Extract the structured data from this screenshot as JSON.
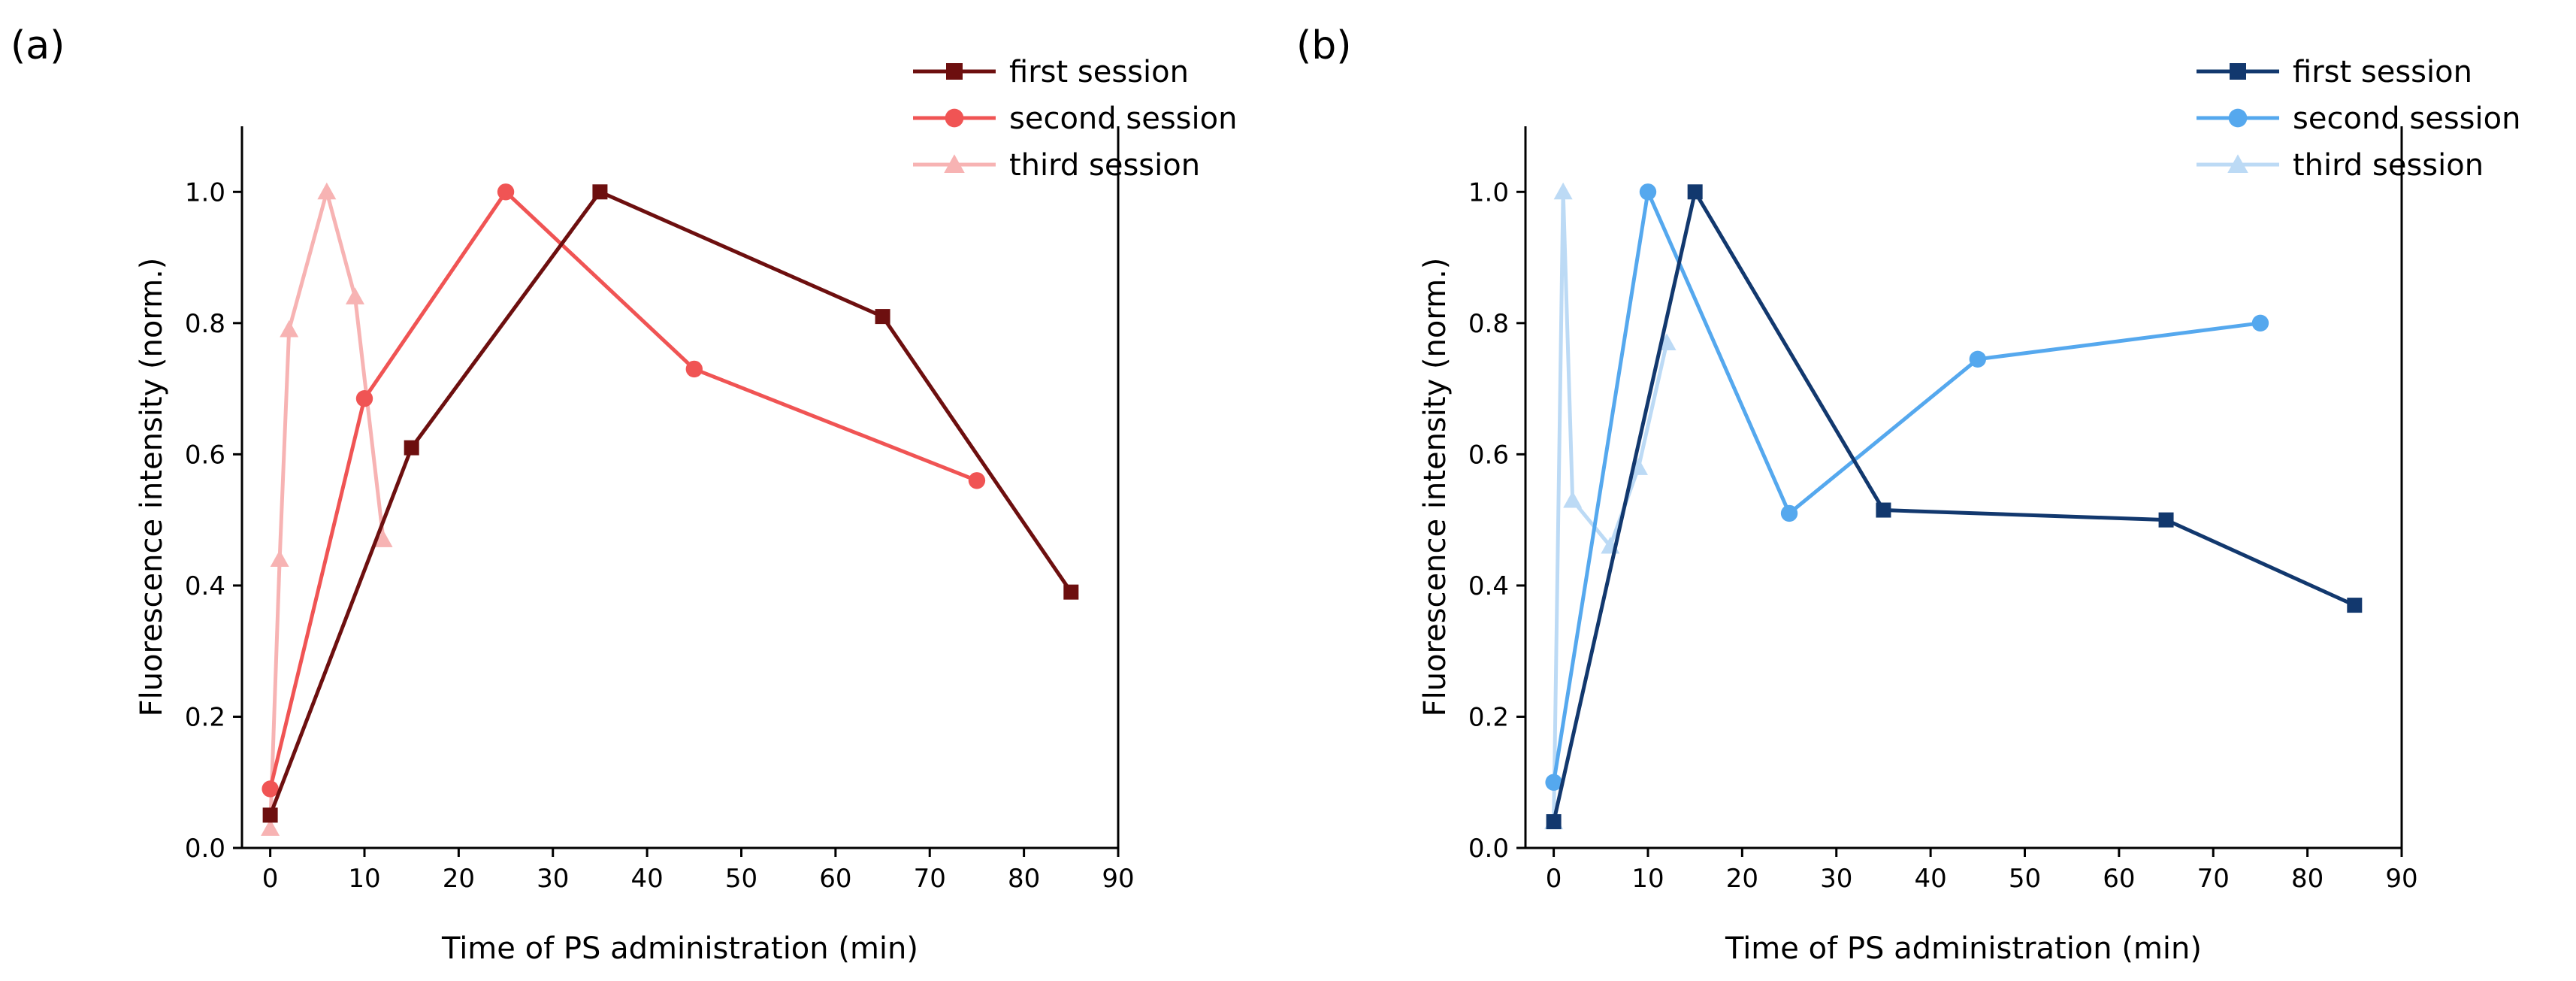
{
  "chart_data": [
    {
      "type": "line",
      "panel_label": "(a)",
      "xlabel": "Time of PS administration (min)",
      "ylabel": "Fluorescence intensity (norm.)",
      "xlim": [
        -3,
        90
      ],
      "ylim": [
        0,
        1.1
      ],
      "xticks": [
        0,
        10,
        20,
        30,
        40,
        50,
        60,
        70,
        80,
        90
      ],
      "yticks": [
        0.0,
        0.2,
        0.4,
        0.6,
        0.8,
        1.0
      ],
      "ytick_labels": [
        "0.0",
        "0.2",
        "0.4",
        "0.6",
        "0.8",
        "1.0"
      ],
      "legend_position": "top-right",
      "series": [
        {
          "name": "first session",
          "color": "#6d0f0f",
          "marker": "square",
          "x": [
            0,
            15,
            35,
            65,
            85
          ],
          "y": [
            0.05,
            0.61,
            1.0,
            0.81,
            0.39
          ]
        },
        {
          "name": "second session",
          "color": "#f05454",
          "marker": "circle",
          "x": [
            0,
            10,
            25,
            45,
            75
          ],
          "y": [
            0.09,
            0.685,
            1.0,
            0.73,
            0.56
          ]
        },
        {
          "name": "third session",
          "color": "#f7b3b3",
          "marker": "triangle",
          "x": [
            0,
            1,
            2,
            6,
            9,
            12
          ],
          "y": [
            0.03,
            0.44,
            0.79,
            1.0,
            0.84,
            0.47
          ]
        }
      ]
    },
    {
      "type": "line",
      "panel_label": "(b)",
      "xlabel": "Time of PS administration (min)",
      "ylabel": "Fluorescence intensity (norm.)",
      "xlim": [
        -3,
        90
      ],
      "ylim": [
        0,
        1.1
      ],
      "xticks": [
        0,
        10,
        20,
        30,
        40,
        50,
        60,
        70,
        80,
        90
      ],
      "yticks": [
        0.0,
        0.2,
        0.4,
        0.6,
        0.8,
        1.0
      ],
      "ytick_labels": [
        "0.0",
        "0.2",
        "0.4",
        "0.6",
        "0.8",
        "1.0"
      ],
      "legend_position": "top-right",
      "series": [
        {
          "name": "first session",
          "color": "#12386e",
          "marker": "square",
          "x": [
            0,
            15,
            35,
            65,
            85
          ],
          "y": [
            0.04,
            1.0,
            0.515,
            0.5,
            0.37
          ]
        },
        {
          "name": "second session",
          "color": "#55a8ee",
          "marker": "circle",
          "x": [
            0,
            10,
            25,
            45,
            75
          ],
          "y": [
            0.1,
            1.0,
            0.51,
            0.745,
            0.8
          ]
        },
        {
          "name": "third session",
          "color": "#bcdaf5",
          "marker": "triangle",
          "x": [
            0,
            1,
            2,
            6,
            9,
            12
          ],
          "y": [
            0.04,
            1.0,
            0.53,
            0.46,
            0.58,
            0.77
          ]
        }
      ]
    }
  ]
}
